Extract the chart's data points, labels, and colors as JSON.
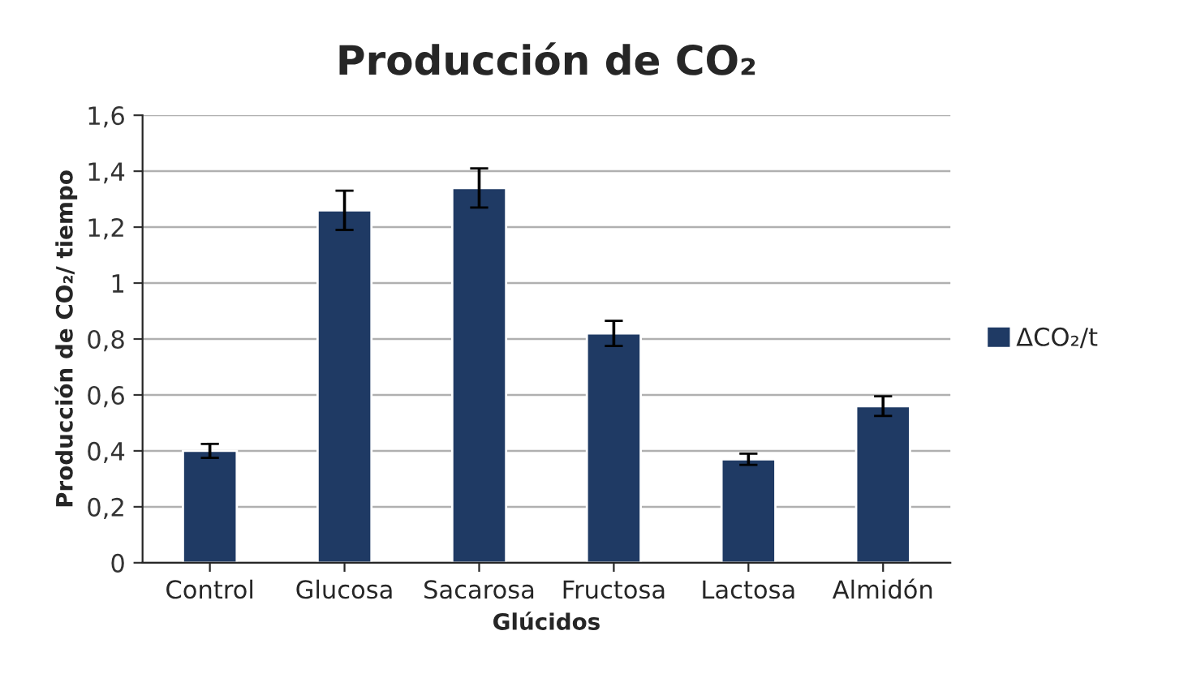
{
  "chart_data": {
    "type": "bar",
    "title": "Producción de CO₂",
    "xlabel": "Glúcidos",
    "ylabel": "Producción de CO₂/ tiempo",
    "categories": [
      "Control",
      "Glucosa",
      "Sacarosa",
      "Fructosa",
      "Lactosa",
      "Almidón"
    ],
    "series": [
      {
        "name": "ΔCO₂/t",
        "color": "#1f3a64",
        "values": [
          0.4,
          1.26,
          1.34,
          0.82,
          0.37,
          0.56
        ],
        "errors": [
          0.025,
          0.07,
          0.07,
          0.045,
          0.02,
          0.035
        ]
      }
    ],
    "ylim": [
      0,
      1.6
    ],
    "yticks": [
      0,
      {
        "value": 0.2,
        "label": "0,2"
      },
      {
        "value": 0.4,
        "label": "0,4"
      },
      {
        "value": 0.6,
        "label": "0,6"
      },
      {
        "value": 0.8,
        "label": "0,8"
      },
      1,
      {
        "value": 1.2,
        "label": "1,2"
      },
      {
        "value": 1.4,
        "label": "1,4"
      },
      {
        "value": 1.6,
        "label": "1,6"
      }
    ],
    "grid": "y",
    "legend": "right"
  }
}
